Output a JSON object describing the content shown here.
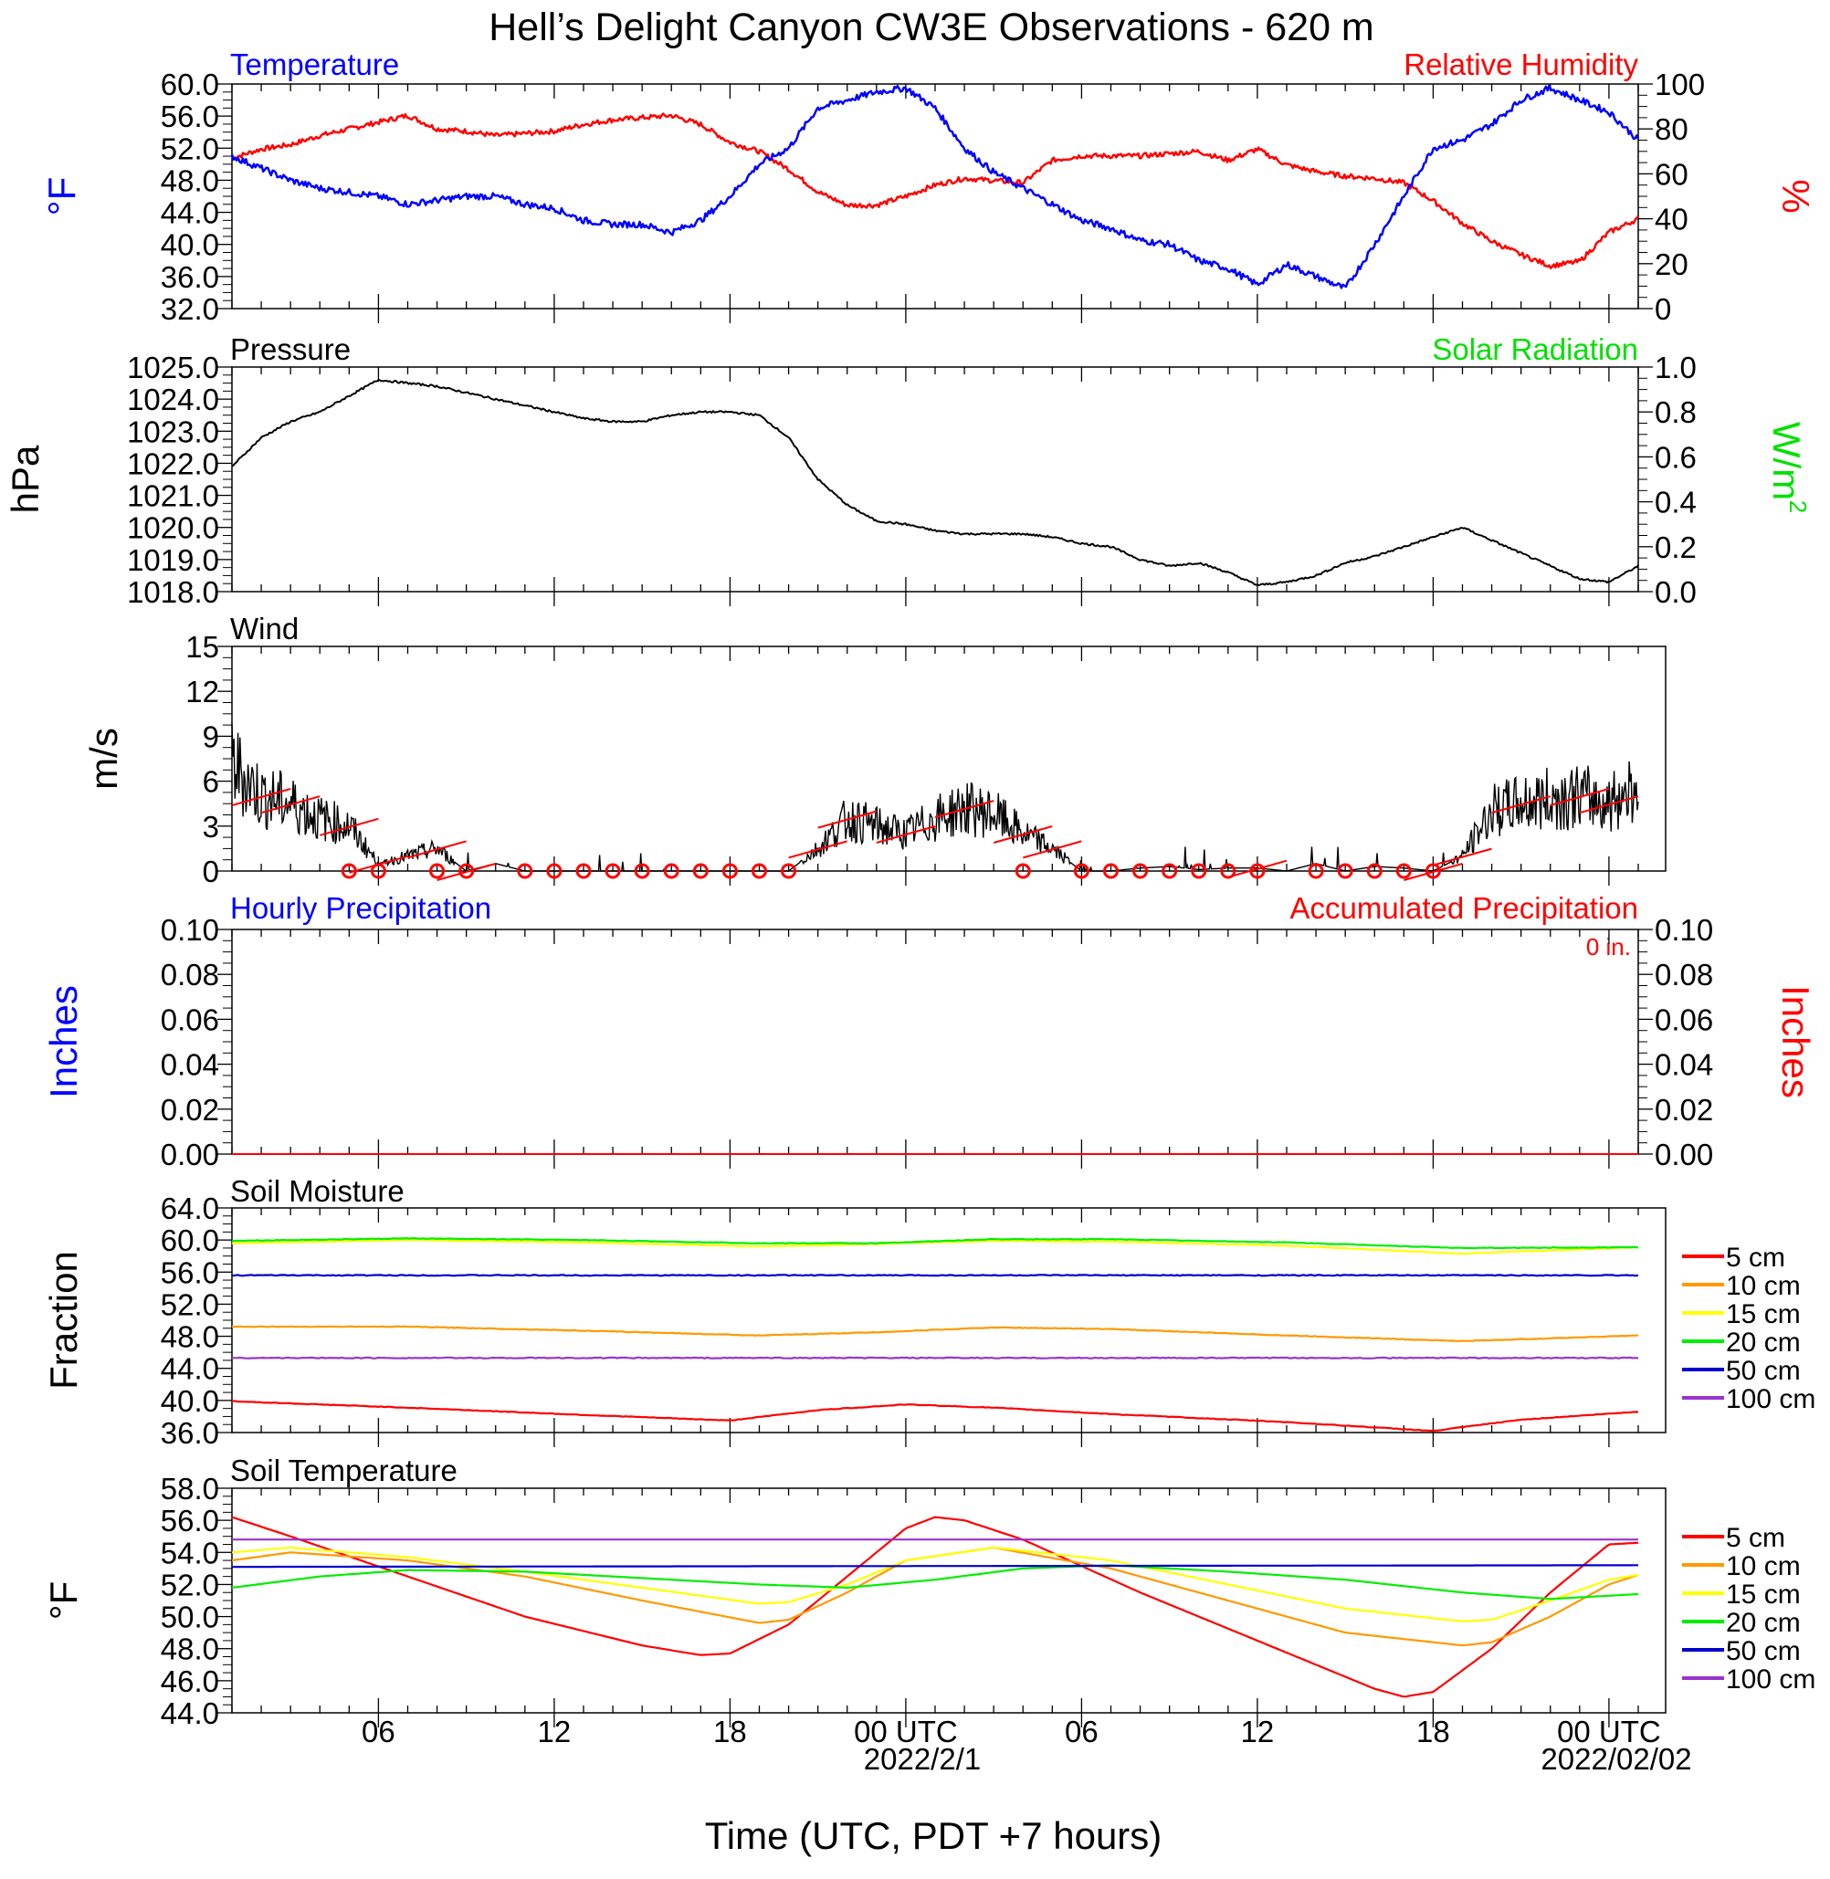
{
  "title": "Hell’s Delight Canyon CW3E Observations - 620 m",
  "x_axis": {
    "title": "Time (UTC, PDT +7 hours)",
    "tick_labels": [
      "06",
      "12",
      "18",
      "00 UTC",
      "06",
      "12",
      "18",
      "00 UTC"
    ],
    "date_labels": [
      "2022/2/1",
      "2022/02/02"
    ]
  },
  "panels": {
    "temperature": {
      "left_title": "Temperature",
      "right_title": "Relative Humidity",
      "left_unit": "°F",
      "right_unit": "%",
      "left_ticks": [
        "60.0",
        "56.0",
        "52.0",
        "48.0",
        "44.0",
        "40.0",
        "36.0",
        "32.0"
      ],
      "right_ticks": [
        "100",
        "80",
        "60",
        "40",
        "20",
        "0"
      ]
    },
    "pressure": {
      "left_title": "Pressure",
      "right_title": "Solar Radiation",
      "left_unit": "hPa",
      "right_unit": "W/m",
      "right_unit_sup": "2",
      "left_ticks": [
        "1025.0",
        "1024.0",
        "1023.0",
        "1022.0",
        "1021.0",
        "1020.0",
        "1019.0",
        "1018.0"
      ],
      "right_ticks": [
        "1.0",
        "0.8",
        "0.6",
        "0.4",
        "0.2",
        "0.0"
      ]
    },
    "wind": {
      "left_title": "Wind",
      "left_unit": "m/s",
      "left_ticks": [
        "15",
        "12",
        "9",
        "6",
        "3",
        "0"
      ]
    },
    "precip": {
      "left_title": "Hourly Precipitation",
      "right_title": "Accumulated Precipitation",
      "total_label": "0 in.",
      "left_unit": "Inches",
      "right_unit": "Inches",
      "left_ticks": [
        "0.10",
        "0.08",
        "0.06",
        "0.04",
        "0.02",
        "0.00"
      ],
      "right_ticks": [
        "0.10",
        "0.08",
        "0.06",
        "0.04",
        "0.02",
        "0.00"
      ]
    },
    "soil_moisture": {
      "left_title": "Soil Moisture",
      "left_unit": "Fraction",
      "left_ticks": [
        "64.0",
        "60.0",
        "56.0",
        "52.0",
        "48.0",
        "44.0",
        "40.0",
        "36.0"
      ],
      "legend": [
        "5 cm",
        "10 cm",
        "15 cm",
        "20 cm",
        "50 cm",
        "100 cm"
      ]
    },
    "soil_temperature": {
      "left_title": "Soil Temperature",
      "left_unit": "°F",
      "left_ticks": [
        "58.0",
        "56.0",
        "54.0",
        "52.0",
        "50.0",
        "48.0",
        "46.0",
        "44.0"
      ],
      "legend": [
        "5 cm",
        "10 cm",
        "15 cm",
        "20 cm",
        "50 cm",
        "100 cm"
      ]
    }
  },
  "colors": {
    "temperature": "#0000ff",
    "humidity": "#ff0000",
    "pressure": "#000000",
    "solar": "#00e000",
    "wind_speed": "#000000",
    "wind_barb": "#ff0000",
    "precip_hourly": "#0000ff",
    "precip_accum": "#ff0000",
    "depth_5cm": "#ff0000",
    "depth_10cm": "#ff9900",
    "depth_15cm": "#ffff00",
    "depth_20cm": "#00ee00",
    "depth_50cm": "#0000cc",
    "depth_100cm": "#9933cc"
  },
  "chart_data": [
    {
      "type": "line",
      "title": "Temperature / Relative Humidity",
      "x_unit": "hours since 2022-01-31 01 UTC",
      "xlim": [
        0,
        48
      ],
      "ylim_left": [
        32,
        60
      ],
      "ylim_right": [
        0,
        100
      ],
      "series": [
        {
          "name": "Temperature",
          "axis": "left",
          "x": [
            0,
            1,
            2,
            3,
            4,
            5,
            6,
            7,
            8,
            9,
            10,
            11,
            12,
            13,
            14,
            15,
            16,
            17,
            18,
            19,
            20,
            21,
            22,
            23,
            24,
            25,
            26,
            27,
            28,
            29,
            30,
            31,
            32,
            33,
            34,
            35,
            36,
            37,
            38,
            39,
            40,
            41,
            42,
            43,
            44,
            45,
            46,
            47,
            48
          ],
          "y": [
            51,
            49.5,
            48,
            47,
            46.5,
            46,
            45,
            45.5,
            46,
            46,
            45,
            44.5,
            43,
            42.5,
            42.5,
            41.5,
            43,
            46,
            50,
            52,
            57,
            58,
            59,
            59.5,
            57,
            52,
            49,
            47,
            45,
            43,
            42,
            40.5,
            40,
            38,
            37,
            35,
            37.5,
            36,
            34.5,
            40,
            46,
            52,
            53,
            55,
            58,
            59.5,
            58,
            56.5,
            53
          ]
        },
        {
          "name": "Relative Humidity",
          "axis": "right",
          "x": [
            0,
            1,
            2,
            3,
            4,
            5,
            6,
            7,
            8,
            9,
            10,
            11,
            12,
            13,
            14,
            15,
            16,
            17,
            18,
            19,
            20,
            21,
            22,
            23,
            24,
            25,
            26,
            27,
            28,
            29,
            30,
            31,
            32,
            33,
            34,
            35,
            36,
            37,
            38,
            39,
            40,
            41,
            42,
            43,
            44,
            45,
            46,
            47,
            48
          ],
          "y": [
            67,
            71,
            73,
            77,
            80,
            83,
            86,
            80,
            79,
            77,
            78,
            79,
            82,
            84,
            85,
            86,
            82,
            74,
            70,
            62,
            52,
            46,
            46,
            50,
            55,
            58,
            57,
            56,
            66,
            68,
            68,
            68,
            69,
            70,
            66,
            71,
            64,
            61,
            59,
            58,
            56,
            48,
            38,
            30,
            24,
            19,
            21,
            34,
            40
          ]
        }
      ]
    },
    {
      "type": "line",
      "title": "Pressure / Solar Radiation",
      "x_unit": "hours since 2022-01-31 01 UTC",
      "xlim": [
        0,
        48
      ],
      "ylim_left": [
        1018,
        1025
      ],
      "ylim_right": [
        0,
        1.0
      ],
      "series": [
        {
          "name": "Pressure",
          "axis": "left",
          "x": [
            0,
            1,
            2,
            3,
            4,
            5,
            6,
            7,
            8,
            9,
            10,
            11,
            12,
            13,
            14,
            15,
            16,
            17,
            18,
            19,
            20,
            21,
            22,
            23,
            24,
            25,
            26,
            27,
            28,
            29,
            30,
            31,
            32,
            33,
            34,
            35,
            36,
            37,
            38,
            39,
            40,
            41,
            42,
            43,
            44,
            45,
            46,
            47,
            48
          ],
          "y": [
            1021.9,
            1022.8,
            1023.3,
            1023.6,
            1024.1,
            1024.6,
            1024.5,
            1024.4,
            1024.2,
            1024.0,
            1023.8,
            1023.6,
            1023.4,
            1023.3,
            1023.3,
            1023.5,
            1023.6,
            1023.6,
            1023.5,
            1022.8,
            1021.5,
            1020.7,
            1020.2,
            1020.1,
            1019.9,
            1019.8,
            1019.8,
            1019.8,
            1019.7,
            1019.5,
            1019.4,
            1019.0,
            1018.8,
            1018.9,
            1018.6,
            1018.2,
            1018.3,
            1018.5,
            1018.9,
            1019.1,
            1019.4,
            1019.7,
            1020.0,
            1019.6,
            1019.2,
            1018.8,
            1018.4,
            1018.3,
            1018.8
          ]
        },
        {
          "name": "Solar Radiation",
          "axis": "right",
          "x": [],
          "y": []
        }
      ]
    },
    {
      "type": "line",
      "title": "Wind",
      "x_unit": "hours since 2022-01-31 01 UTC",
      "xlim": [
        0,
        48
      ],
      "ylim": [
        0,
        15
      ],
      "series": [
        {
          "name": "Wind speed",
          "x": [
            0,
            1,
            2,
            3,
            4,
            5,
            6,
            7,
            8,
            9,
            10,
            11,
            12,
            13,
            14,
            15,
            16,
            17,
            18,
            19,
            20,
            21,
            22,
            23,
            24,
            25,
            26,
            27,
            28,
            29,
            30,
            31,
            32,
            33,
            34,
            35,
            36,
            37,
            38,
            39,
            40,
            41,
            42,
            43,
            44,
            45,
            46,
            47,
            48
          ],
          "y": [
            7.2,
            5,
            4.5,
            3.5,
            3,
            0.5,
            1,
            1.5,
            0,
            0.5,
            0,
            0,
            0,
            0,
            0,
            0,
            0,
            0,
            0,
            0,
            1.5,
            3.5,
            3,
            2.5,
            3.5,
            4.2,
            3.8,
            2.5,
            1.5,
            0,
            0,
            0.2,
            0.3,
            0.1,
            0.2,
            0.2,
            0,
            0.5,
            0,
            0.3,
            0.2,
            0,
            1,
            4,
            4.5,
            4.8,
            5,
            4.5,
            6
          ]
        }
      ],
      "barbs_hours": [
        1,
        2,
        4,
        5,
        7,
        8,
        20,
        21,
        23,
        25,
        27,
        28,
        35,
        41,
        42,
        44,
        46,
        47
      ],
      "calm_hours": [
        4,
        5,
        7,
        8,
        10,
        11,
        12,
        13,
        14,
        15,
        16,
        17,
        18,
        19,
        27,
        29,
        30,
        31,
        32,
        33,
        34,
        35,
        37,
        38,
        39,
        40,
        41
      ]
    },
    {
      "type": "line",
      "title": "Precipitation",
      "x_unit": "hours since 2022-01-31 01 UTC",
      "xlim": [
        0,
        48
      ],
      "ylim_left": [
        0,
        0.1
      ],
      "ylim_right": [
        0,
        0.1
      ],
      "series": [
        {
          "name": "Hourly Precipitation",
          "axis": "left",
          "x": [
            0,
            48
          ],
          "y": [
            0,
            0
          ]
        },
        {
          "name": "Accumulated Precipitation",
          "axis": "right",
          "x": [
            0,
            48
          ],
          "y": [
            0,
            0
          ]
        }
      ]
    },
    {
      "type": "line",
      "title": "Soil Moisture",
      "x_unit": "hours since 2022-01-31 01 UTC",
      "xlim": [
        0,
        48
      ],
      "ylim": [
        36,
        64
      ],
      "series": [
        {
          "name": "5 cm",
          "x": [
            0,
            6,
            12,
            17,
            20,
            23,
            26,
            30,
            36,
            41,
            44,
            48
          ],
          "y": [
            39.9,
            39.1,
            38.2,
            37.5,
            38.8,
            39.5,
            39.1,
            38.3,
            37.3,
            36.2,
            37.6,
            38.6
          ]
        },
        {
          "name": "10 cm",
          "x": [
            0,
            6,
            12,
            18,
            22,
            26,
            30,
            36,
            42,
            48
          ],
          "y": [
            49.2,
            49.2,
            48.7,
            48.1,
            48.5,
            49.1,
            48.9,
            48.1,
            47.4,
            48.1
          ]
        },
        {
          "name": "15 cm",
          "x": [
            0,
            6,
            12,
            18,
            22,
            26,
            30,
            36,
            42,
            48
          ],
          "y": [
            59.6,
            60.0,
            59.7,
            59.2,
            59.5,
            59.9,
            59.8,
            59.3,
            58.3,
            59.1
          ]
        },
        {
          "name": "20 cm",
          "x": [
            0,
            6,
            12,
            18,
            22,
            26,
            30,
            36,
            42,
            48
          ],
          "y": [
            59.9,
            60.2,
            60.0,
            59.6,
            59.6,
            60.1,
            60.1,
            59.7,
            59.0,
            59.1
          ]
        },
        {
          "name": "50 cm",
          "x": [
            0,
            48
          ],
          "y": [
            55.6,
            55.6
          ]
        },
        {
          "name": "100 cm",
          "x": [
            0,
            48
          ],
          "y": [
            45.3,
            45.3
          ]
        }
      ]
    },
    {
      "type": "line",
      "title": "Soil Temperature",
      "x_unit": "hours since 2022-01-31 01 UTC",
      "xlim": [
        0,
        48
      ],
      "ylim": [
        44,
        58
      ],
      "series": [
        {
          "name": "5 cm",
          "x": [
            0,
            2,
            6,
            10,
            14,
            16,
            17,
            19,
            21,
            23,
            24,
            25,
            27,
            31,
            35,
            39,
            40,
            41,
            43,
            45,
            47,
            48
          ],
          "y": [
            56.2,
            55,
            52.5,
            50,
            48.2,
            47.6,
            47.7,
            49.5,
            52.5,
            55.5,
            56.2,
            56.0,
            54.8,
            51.5,
            48.5,
            45.5,
            45,
            45.3,
            48,
            51.5,
            54.5,
            54.6
          ]
        },
        {
          "name": "10 cm",
          "x": [
            0,
            2,
            6,
            10,
            14,
            18,
            19,
            21,
            23,
            26,
            30,
            34,
            38,
            42,
            43,
            45,
            47,
            48
          ],
          "y": [
            53.5,
            54,
            53.5,
            52.5,
            51,
            49.6,
            49.8,
            51.5,
            53.5,
            54.3,
            53,
            51,
            49,
            48.2,
            48.4,
            50,
            52,
            52.6
          ]
        },
        {
          "name": "15 cm",
          "x": [
            0,
            2,
            6,
            10,
            14,
            18,
            19,
            21,
            23,
            26,
            30,
            34,
            38,
            42,
            43,
            45,
            47,
            48
          ],
          "y": [
            54,
            54.3,
            53.7,
            52.8,
            51.8,
            50.8,
            50.9,
            52,
            53.5,
            54.3,
            53.5,
            52,
            50.5,
            49.7,
            49.8,
            51,
            52.3,
            52.6
          ]
        },
        {
          "name": "20 cm",
          "x": [
            0,
            3,
            6,
            10,
            14,
            18,
            21,
            24,
            27,
            30,
            34,
            38,
            42,
            45,
            48
          ],
          "y": [
            51.8,
            52.5,
            52.9,
            52.8,
            52.4,
            52,
            51.8,
            52.3,
            53,
            53.2,
            52.8,
            52.3,
            51.5,
            51.1,
            51.4
          ]
        },
        {
          "name": "50 cm",
          "x": [
            0,
            48
          ],
          "y": [
            53.1,
            53.2
          ]
        },
        {
          "name": "100 cm",
          "x": [
            0,
            48
          ],
          "y": [
            54.8,
            54.8
          ]
        }
      ]
    }
  ]
}
